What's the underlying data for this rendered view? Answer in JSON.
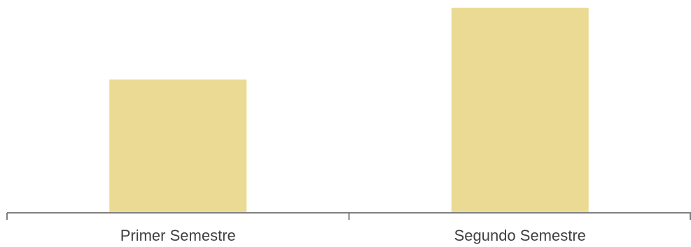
{
  "chart_data": {
    "type": "bar",
    "categories": [
      "Primer Semestre",
      "Segundo Semestre"
    ],
    "values": [
      65,
      100
    ],
    "title": "",
    "xlabel": "",
    "ylabel": "",
    "ylim": [
      0,
      100
    ],
    "grid": false,
    "legend": "none",
    "bar_color": "#EBDA94",
    "axis_color": "#7F7F7F"
  }
}
